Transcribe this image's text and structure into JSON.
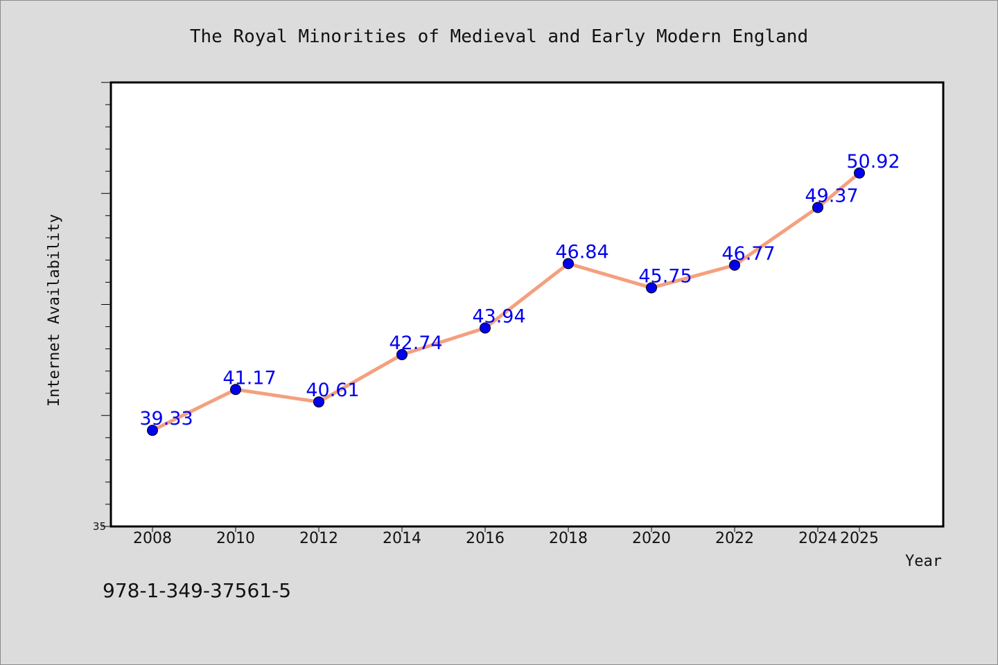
{
  "chart_data": {
    "type": "line",
    "title": "The Royal Minorities of Medieval and Early Modern England",
    "xlabel": "Year",
    "ylabel": "Internet Availability",
    "x": [
      "2008",
      "2010",
      "2012",
      "2014",
      "2016",
      "2018",
      "2020",
      "2022",
      "2024",
      "2025"
    ],
    "series": [
      {
        "values": [
          39.33,
          41.17,
          40.61,
          42.74,
          43.94,
          46.84,
          45.75,
          46.77,
          49.37,
          50.92
        ],
        "data_labels": [
          "39.33",
          "41.17",
          "40.61",
          "42.74",
          "43.94",
          "46.84",
          "45.75",
          "46.77",
          "49.37",
          "50.92"
        ]
      }
    ],
    "ylim": [
      35,
      55
    ],
    "y_tick_labels": [
      {
        "value": 35,
        "label": "35"
      }
    ],
    "grid": false,
    "colors": {
      "line": "#f4a07e",
      "marker": "#0000ee",
      "label": "#0000ee"
    }
  },
  "footer_code": "978-1-349-37561-5"
}
